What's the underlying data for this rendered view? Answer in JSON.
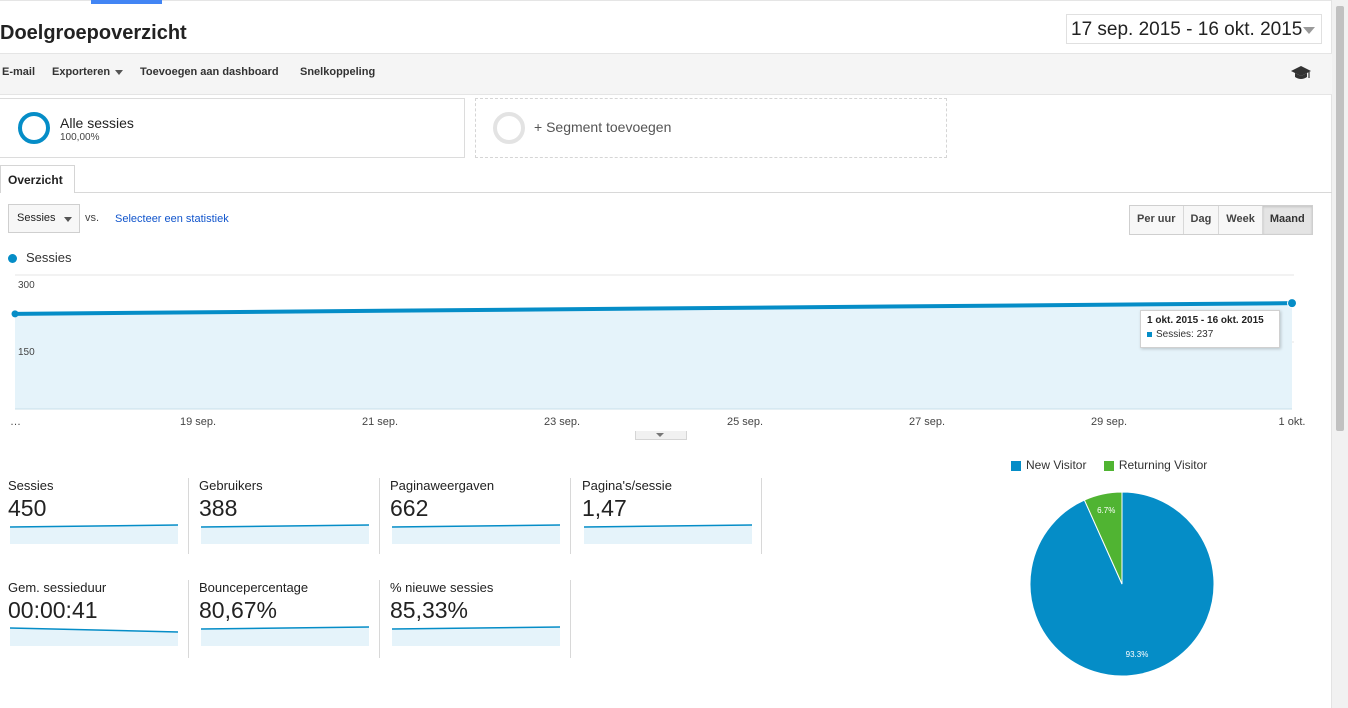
{
  "header": {
    "title": "Doelgroepoverzicht",
    "date_range": "17 sep. 2015 - 16 okt. 2015"
  },
  "toolbar": {
    "email": "E-mail",
    "export": "Exporteren",
    "add_dashboard": "Toevoegen aan dashboard",
    "shortcut": "Snelkoppeling",
    "help_icon": "graduation-cap-icon"
  },
  "segments": {
    "all_sessions": "Alle sessies",
    "all_sessions_pct": "100,00%",
    "add_segment": "+ Segment toevoegen"
  },
  "tabs": {
    "overview": "Overzicht"
  },
  "controls": {
    "metric_select": "Sessies",
    "vs": "vs.",
    "select_metric": "Selecteer een statistiek",
    "periods": [
      "Per uur",
      "Dag",
      "Week",
      "Maand"
    ],
    "active_period": "Maand"
  },
  "chart_data": {
    "type": "area",
    "series": [
      {
        "name": "Sessies",
        "x": [
          "…",
          "1 okt."
        ],
        "values": [
          213,
          237
        ]
      }
    ],
    "x_tick_labels": [
      "…",
      "19 sep.",
      "21 sep.",
      "23 sep.",
      "25 sep.",
      "27 sep.",
      "29 sep.",
      "1 okt."
    ],
    "y_tick_labels": [
      "300",
      "150"
    ],
    "ylim": [
      0,
      300
    ],
    "color": "#058dc7",
    "tooltip": {
      "title": "1 okt. 2015 - 16 okt. 2015",
      "text": "Sessies: 237"
    }
  },
  "metrics": [
    {
      "label": "Sessies",
      "value": "450"
    },
    {
      "label": "Gebruikers",
      "value": "388"
    },
    {
      "label": "Paginaweergaven",
      "value": "662"
    },
    {
      "label": "Pagina's/sessie",
      "value": "1,47"
    },
    {
      "label": "Gem. sessieduur",
      "value": "00:00:41"
    },
    {
      "label": "Bouncepercentage",
      "value": "80,67%"
    },
    {
      "label": "% nieuwe sessies",
      "value": "85,33%"
    }
  ],
  "pie": {
    "legend": [
      {
        "name": "New Visitor",
        "color": "#058dc7"
      },
      {
        "name": "Returning Visitor",
        "color": "#50b432"
      }
    ],
    "slices": [
      {
        "name": "New Visitor",
        "value": 93.3,
        "label": "93.3%"
      },
      {
        "name": "Returning Visitor",
        "value": 6.7,
        "label": "6.7%"
      }
    ]
  }
}
